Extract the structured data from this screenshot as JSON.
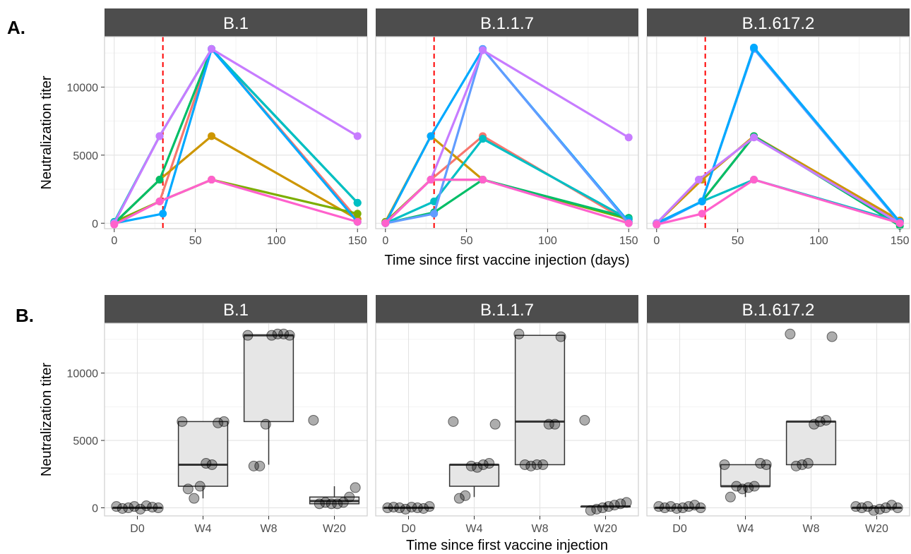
{
  "figure": {
    "panel_labels": [
      "A.",
      "B."
    ]
  },
  "chart_data": [
    {
      "type": "line",
      "panel_label": "A.",
      "facets": [
        "B.1",
        "B.1.1.7",
        "B.1.617.2"
      ],
      "xlabel": "Time since first vaccine injection (days)",
      "ylabel": "Neutralization titer",
      "xlim": [
        -6,
        156
      ],
      "ylim": [
        -400,
        13700
      ],
      "xticks": [
        0,
        50,
        100,
        150
      ],
      "yticks": [
        0,
        5000,
        10000
      ],
      "vline_x": 30,
      "vline_color": "#ff0000",
      "grid": true,
      "legend": "none",
      "facet_series": [
        [
          {
            "color": "#f8766d",
            "x": [
              0,
              28,
              60,
              150
            ],
            "y": [
              0,
              1600,
              12800,
              300
            ]
          },
          {
            "color": "#cd9600",
            "x": [
              0,
              28,
              60,
              150
            ],
            "y": [
              0,
              3200,
              6400,
              300
            ]
          },
          {
            "color": "#7cae00",
            "x": [
              0,
              28,
              60,
              150
            ],
            "y": [
              100,
              1600,
              3200,
              700
            ]
          },
          {
            "color": "#00be67",
            "x": [
              0,
              28,
              60,
              150
            ],
            "y": [
              0,
              3200,
              12800,
              1500
            ]
          },
          {
            "color": "#00bfc4",
            "x": [
              0,
              28,
              60,
              150
            ],
            "y": [
              100,
              6400,
              12800,
              1500
            ]
          },
          {
            "color": "#00a9ff",
            "x": [
              0,
              30,
              60,
              150
            ],
            "y": [
              0,
              700,
              12800,
              100
            ]
          },
          {
            "color": "#c77cff",
            "x": [
              0,
              28,
              60,
              150
            ],
            "y": [
              0,
              6400,
              12800,
              6400
            ]
          },
          {
            "color": "#ff61cc",
            "x": [
              0,
              28,
              60,
              150
            ],
            "y": [
              -100,
              1600,
              3200,
              100
            ]
          }
        ],
        [
          {
            "color": "#f8766d",
            "x": [
              0,
              28,
              60,
              150
            ],
            "y": [
              0,
              3200,
              6400,
              100
            ]
          },
          {
            "color": "#cd9600",
            "x": [
              0,
              28,
              60,
              150
            ],
            "y": [
              100,
              6400,
              3200,
              300
            ]
          },
          {
            "color": "#7cae00",
            "x": [
              0,
              28,
              60,
              150
            ],
            "y": [
              100,
              3200,
              3200,
              300
            ]
          },
          {
            "color": "#00be67",
            "x": [
              0,
              30,
              60,
              150
            ],
            "y": [
              0,
              800,
              3200,
              400
            ]
          },
          {
            "color": "#00bfc4",
            "x": [
              0,
              30,
              60,
              150
            ],
            "y": [
              0,
              1600,
              6200,
              300
            ]
          },
          {
            "color": "#00a9ff",
            "x": [
              0,
              28,
              60,
              150
            ],
            "y": [
              0,
              6400,
              12800,
              100
            ]
          },
          {
            "color": "#619cff",
            "x": [
              0,
              30,
              60,
              150
            ],
            "y": [
              0,
              700,
              12800,
              0
            ]
          },
          {
            "color": "#c77cff",
            "x": [
              0,
              28,
              60,
              150
            ],
            "y": [
              0,
              3200,
              12700,
              6300
            ]
          },
          {
            "color": "#ff61cc",
            "x": [
              0,
              28,
              60,
              150
            ],
            "y": [
              0,
              3200,
              3200,
              0
            ]
          }
        ],
        [
          {
            "color": "#f8766d",
            "x": [
              0,
              28,
              60,
              150
            ],
            "y": [
              0,
              1600,
              6400,
              100
            ]
          },
          {
            "color": "#cd9600",
            "x": [
              0,
              28,
              60,
              150
            ],
            "y": [
              0,
              3200,
              6400,
              200
            ]
          },
          {
            "color": "#00be67",
            "x": [
              0,
              28,
              60,
              150
            ],
            "y": [
              0,
              1600,
              6400,
              -200
            ]
          },
          {
            "color": "#00bfc4",
            "x": [
              0,
              28,
              60,
              150
            ],
            "y": [
              0,
              1600,
              3200,
              100
            ]
          },
          {
            "color": "#619cff",
            "x": [
              0,
              28,
              60,
              150
            ],
            "y": [
              -100,
              1600,
              12800,
              0
            ]
          },
          {
            "color": "#00a9ff",
            "x": [
              0,
              28,
              60,
              150
            ],
            "y": [
              0,
              1600,
              12900,
              100
            ]
          },
          {
            "color": "#c77cff",
            "x": [
              0,
              26,
              60,
              150
            ],
            "y": [
              0,
              3200,
              6300,
              0
            ]
          },
          {
            "color": "#ff61cc",
            "x": [
              0,
              28,
              60,
              150
            ],
            "y": [
              -100,
              700,
              3200,
              0
            ]
          }
        ]
      ]
    },
    {
      "type": "box",
      "panel_label": "B.",
      "facets": [
        "B.1",
        "B.1.1.7",
        "B.1.617.2"
      ],
      "categories": [
        "D0",
        "W4",
        "W8",
        "W20"
      ],
      "xlabel": "Time since first vaccine injection",
      "ylabel": "Neutralization titer",
      "ylim": [
        -600,
        13700
      ],
      "yticks": [
        0,
        5000,
        10000
      ],
      "grid": true,
      "legend": "none",
      "facet_boxes": [
        [
          {
            "q1": 0,
            "median": 0,
            "q3": 0,
            "whisker_low": 0,
            "whisker_high": 0,
            "points": [
              100,
              0,
              50,
              150,
              -100,
              100,
              0,
              -50
            ]
          },
          {
            "q1": 1600,
            "median": 3200,
            "q3": 6400,
            "whisker_low": 700,
            "whisker_high": 6400,
            "points": [
              6400,
              6400,
              6300,
              3200,
              3300,
              1600,
              700,
              1400
            ]
          },
          {
            "q1": 6400,
            "median": 12800,
            "q3": 12800,
            "whisker_low": 3200,
            "whisker_high": 12800,
            "points": [
              12800,
              12800,
              12900,
              12900,
              12800,
              6200,
              3100,
              3100
            ]
          },
          {
            "q1": 300,
            "median": 500,
            "q3": 800,
            "whisker_low": 300,
            "whisker_high": 1600,
            "points": [
              6500,
              1500,
              800,
              400,
              300,
              300,
              400,
              300
            ]
          }
        ],
        [
          {
            "q1": 0,
            "median": 0,
            "q3": 0,
            "whisker_low": 0,
            "whisker_high": 0,
            "points": [
              0,
              100,
              -50,
              0,
              50,
              -100,
              0,
              50
            ]
          },
          {
            "q1": 1600,
            "median": 3200,
            "q3": 3200,
            "whisker_low": 800,
            "whisker_high": 3200,
            "points": [
              6400,
              6200,
              3300,
              3200,
              3000,
              3100,
              900,
              700
            ]
          },
          {
            "q1": 3200,
            "median": 6400,
            "q3": 12800,
            "whisker_low": 3200,
            "whisker_high": 12800,
            "points": [
              12900,
              12700,
              6200,
              6200,
              3200,
              3200,
              3100,
              3200
            ]
          },
          {
            "q1": 100,
            "median": 100,
            "q3": 100,
            "whisker_low": 0,
            "whisker_high": 400,
            "points": [
              6500,
              400,
              300,
              200,
              100,
              0,
              -100,
              -200
            ]
          }
        ],
        [
          {
            "q1": 0,
            "median": 0,
            "q3": 0,
            "whisker_low": 0,
            "whisker_high": 0,
            "points": [
              100,
              0,
              200,
              100,
              0,
              -50,
              100,
              0
            ]
          },
          {
            "q1": 1600,
            "median": 1600,
            "q3": 3200,
            "whisker_low": 800,
            "whisker_high": 3200,
            "points": [
              3200,
              3200,
              3300,
              1600,
              1500,
              1400,
              1600,
              800
            ]
          },
          {
            "q1": 3200,
            "median": 6400,
            "q3": 6400,
            "whisker_low": 3200,
            "whisker_high": 6400,
            "points": [
              12900,
              12700,
              6500,
              6400,
              6200,
              3300,
              3200,
              3100
            ]
          },
          {
            "q1": 0,
            "median": 0,
            "q3": 0,
            "whisker_low": 0,
            "whisker_high": 0,
            "points": [
              100,
              0,
              200,
              0,
              -100,
              -200,
              100,
              0
            ]
          }
        ]
      ]
    }
  ]
}
